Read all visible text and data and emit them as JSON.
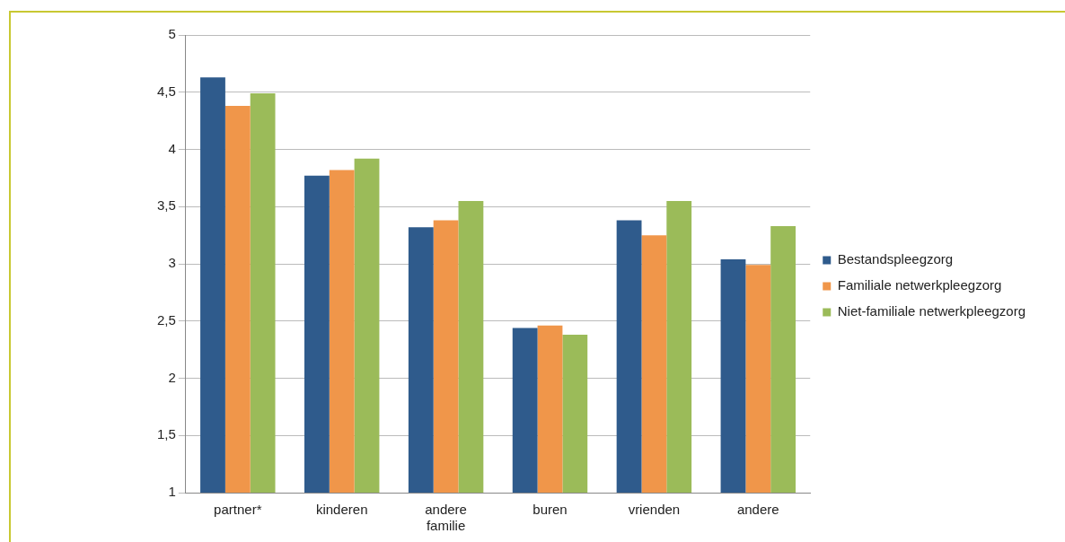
{
  "chart_data": {
    "type": "bar",
    "categories": [
      "partner*",
      "kinderen",
      "andere familie",
      "buren",
      "vrienden",
      "andere"
    ],
    "series": [
      {
        "name": "Bestandspleegzorg",
        "color": "#2f5b8c",
        "values": [
          4.63,
          3.77,
          3.32,
          2.44,
          3.38,
          3.04
        ]
      },
      {
        "name": "Familiale netwerkpleegzorg",
        "color": "#f0964a",
        "values": [
          4.38,
          3.82,
          3.38,
          2.46,
          3.25,
          2.99
        ]
      },
      {
        "name": "Niet-familiale netwerkpleegzorg",
        "color": "#9bbb59",
        "values": [
          4.49,
          3.92,
          3.55,
          2.38,
          3.55,
          3.33
        ]
      }
    ],
    "ylim": [
      1,
      5
    ],
    "yticks": [
      1,
      {
        "value": 1.5,
        "label": "1,5"
      },
      2,
      {
        "value": 2.5,
        "label": "2,5"
      },
      3,
      {
        "value": 3.5,
        "label": "3,5"
      },
      4,
      {
        "value": 4.5,
        "label": "4,5"
      },
      5
    ],
    "grid": "y",
    "legend": "right"
  }
}
